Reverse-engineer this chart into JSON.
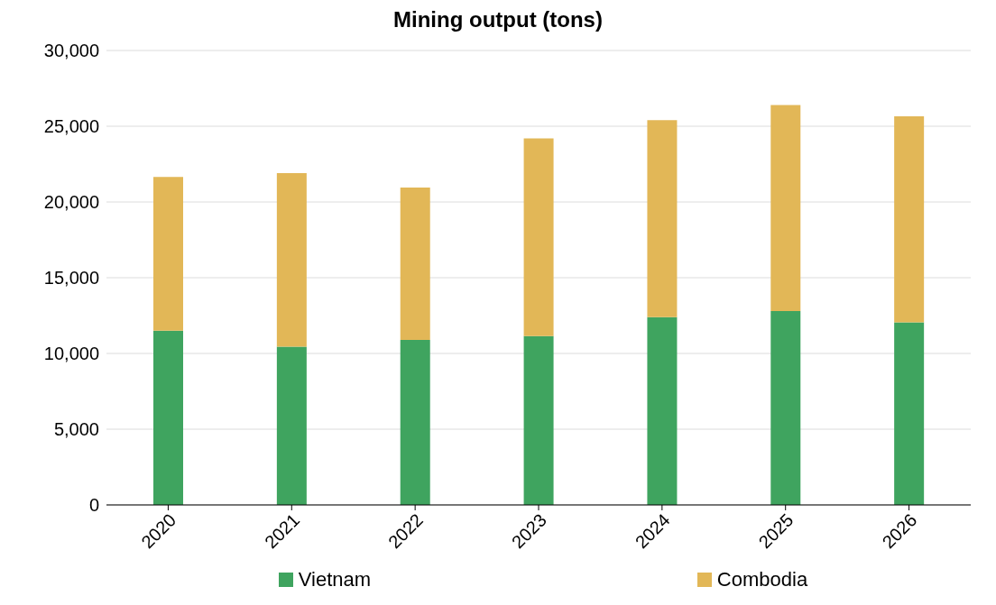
{
  "chart_data": {
    "type": "bar",
    "title": "Mining output (tons)",
    "stacked": true,
    "categories": [
      "2020",
      "2021",
      "2022",
      "2023",
      "2024",
      "2025",
      "2026"
    ],
    "series": [
      {
        "name": "Vietnam",
        "color": "#3fa45f",
        "values": [
          11500,
          10450,
          10900,
          11150,
          12400,
          12800,
          12050
        ]
      },
      {
        "name": "Combodia",
        "color": "#e2b757",
        "values": [
          10150,
          11450,
          10050,
          13050,
          13000,
          13600,
          13600
        ]
      }
    ],
    "ylim": [
      0,
      30000
    ],
    "yticks": [
      0,
      {
        "value": 5000,
        "label": "5,000"
      },
      {
        "value": 10000,
        "label": "10,000"
      },
      {
        "value": 15000,
        "label": "15,000"
      },
      {
        "value": 20000,
        "label": "20,000"
      },
      {
        "value": 25000,
        "label": "25,000"
      },
      {
        "value": 30000,
        "label": "30,000"
      }
    ],
    "grid": "y",
    "legend": "bottom"
  }
}
